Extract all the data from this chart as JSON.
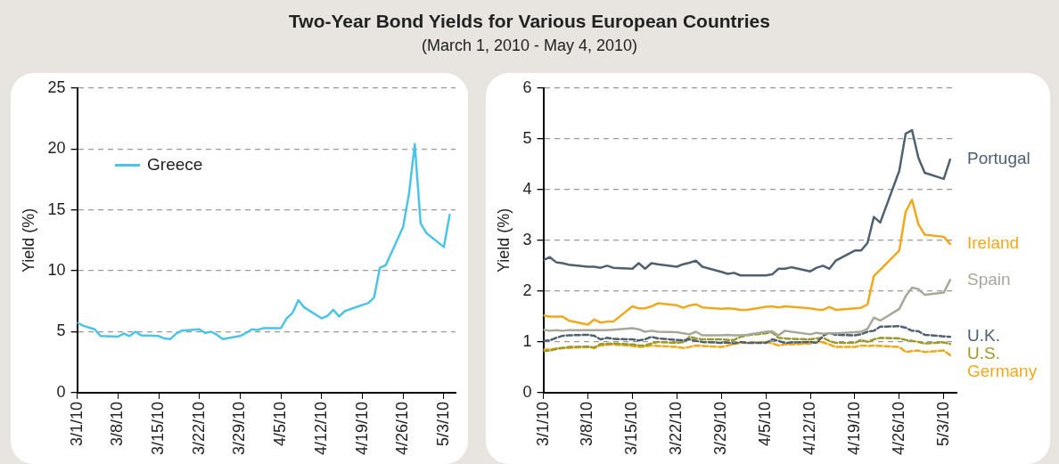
{
  "chart_data": [
    {
      "type": "line",
      "title": "Two-Year Bond Yields for Various European Countries",
      "subtitle": "(March 1, 2010 - May 4, 2010)",
      "ylabel": "Yield (%)",
      "x": [
        "2010-03-01",
        "2010-03-02",
        "2010-03-03",
        "2010-03-04",
        "2010-03-05",
        "2010-03-08",
        "2010-03-09",
        "2010-03-10",
        "2010-03-11",
        "2010-03-12",
        "2010-03-15",
        "2010-03-16",
        "2010-03-17",
        "2010-03-18",
        "2010-03-19",
        "2010-03-22",
        "2010-03-23",
        "2010-03-24",
        "2010-03-25",
        "2010-03-26",
        "2010-03-29",
        "2010-03-30",
        "2010-03-31",
        "2010-04-01",
        "2010-04-02",
        "2010-04-05",
        "2010-04-06",
        "2010-04-07",
        "2010-04-08",
        "2010-04-09",
        "2010-04-12",
        "2010-04-13",
        "2010-04-14",
        "2010-04-15",
        "2010-04-16",
        "2010-04-19",
        "2010-04-20",
        "2010-04-21",
        "2010-04-22",
        "2010-04-23",
        "2010-04-26",
        "2010-04-27",
        "2010-04-28",
        "2010-04-29",
        "2010-04-30",
        "2010-05-03",
        "2010-05-04"
      ],
      "xlim": [
        "2010-03-01",
        "2010-05-05"
      ],
      "xticks": [
        {
          "value": "2010-03-01",
          "label": "3/1/10"
        },
        {
          "value": "2010-03-08",
          "label": "3/8/10"
        },
        {
          "value": "2010-03-15",
          "label": "3/15/10"
        },
        {
          "value": "2010-03-22",
          "label": "3/22/10"
        },
        {
          "value": "2010-03-29",
          "label": "3/29/10"
        },
        {
          "value": "2010-04-05",
          "label": "4/5/10"
        },
        {
          "value": "2010-04-12",
          "label": "4/12/10"
        },
        {
          "value": "2010-04-19",
          "label": "4/19/10"
        },
        {
          "value": "2010-04-26",
          "label": "4/26/10"
        },
        {
          "value": "2010-05-03",
          "label": "5/3/10"
        }
      ],
      "ylim": [
        0,
        25
      ],
      "yticks": [
        0,
        5,
        10,
        15,
        20,
        25
      ],
      "grid": "y",
      "legend": "top left",
      "marker": "none",
      "series": [
        {
          "name": "Greece",
          "color": "#4cc4e8",
          "line_style": "solid",
          "values": [
            5.74,
            5.5,
            5.35,
            5.2,
            4.65,
            4.6,
            4.85,
            4.65,
            5.0,
            4.7,
            4.65,
            4.45,
            4.4,
            4.85,
            5.1,
            5.2,
            4.9,
            5.0,
            4.75,
            4.4,
            4.65,
            4.9,
            5.2,
            5.15,
            5.3,
            5.3,
            6.1,
            6.55,
            7.6,
            7.0,
            6.1,
            6.3,
            6.8,
            6.25,
            6.7,
            7.2,
            7.35,
            7.8,
            10.25,
            10.45,
            13.6,
            16.3,
            20.4,
            13.9,
            13.1,
            11.95,
            14.6
          ]
        }
      ]
    },
    {
      "type": "line",
      "ylabel": "Yield (%)",
      "x": [
        "2010-03-01",
        "2010-03-02",
        "2010-03-03",
        "2010-03-04",
        "2010-03-05",
        "2010-03-08",
        "2010-03-09",
        "2010-03-10",
        "2010-03-11",
        "2010-03-12",
        "2010-03-15",
        "2010-03-16",
        "2010-03-17",
        "2010-03-18",
        "2010-03-19",
        "2010-03-22",
        "2010-03-23",
        "2010-03-24",
        "2010-03-25",
        "2010-03-26",
        "2010-03-29",
        "2010-03-30",
        "2010-03-31",
        "2010-04-01",
        "2010-04-02",
        "2010-04-05",
        "2010-04-06",
        "2010-04-07",
        "2010-04-08",
        "2010-04-09",
        "2010-04-12",
        "2010-04-13",
        "2010-04-14",
        "2010-04-15",
        "2010-04-16",
        "2010-04-19",
        "2010-04-20",
        "2010-04-21",
        "2010-04-22",
        "2010-04-23",
        "2010-04-26",
        "2010-04-27",
        "2010-04-28",
        "2010-04-29",
        "2010-04-30",
        "2010-05-03",
        "2010-05-04"
      ],
      "xlim": [
        "2010-03-01",
        "2010-05-05"
      ],
      "xticks": [
        {
          "value": "2010-03-01",
          "label": "3/1/10"
        },
        {
          "value": "2010-03-08",
          "label": "3/8/10"
        },
        {
          "value": "2010-03-15",
          "label": "3/15/10"
        },
        {
          "value": "2010-03-22",
          "label": "3/22/10"
        },
        {
          "value": "2010-03-29",
          "label": "3/29/10"
        },
        {
          "value": "2010-04-05",
          "label": "4/5/10"
        },
        {
          "value": "2010-04-12",
          "label": "4/12/10"
        },
        {
          "value": "2010-04-19",
          "label": "4/19/10"
        },
        {
          "value": "2010-04-26",
          "label": "4/26/10"
        },
        {
          "value": "2010-05-03",
          "label": "5/3/10"
        }
      ],
      "ylim": [
        0,
        6
      ],
      "yticks": [
        0,
        1,
        2,
        3,
        4,
        5,
        6
      ],
      "grid": "y",
      "marker": "none",
      "series": [
        {
          "name": "Portugal",
          "color": "#4f6170",
          "line_style": "solid",
          "values": [
            2.61,
            2.67,
            2.57,
            2.55,
            2.52,
            2.48,
            2.48,
            2.46,
            2.5,
            2.46,
            2.44,
            2.55,
            2.44,
            2.55,
            2.53,
            2.48,
            2.53,
            2.56,
            2.6,
            2.48,
            2.38,
            2.34,
            2.36,
            2.31,
            2.31,
            2.31,
            2.33,
            2.44,
            2.44,
            2.47,
            2.39,
            2.46,
            2.5,
            2.44,
            2.6,
            2.8,
            2.8,
            2.95,
            3.46,
            3.35,
            4.37,
            5.1,
            5.17,
            4.63,
            4.33,
            4.21,
            4.59
          ]
        },
        {
          "name": "Ireland",
          "color": "#f0a81c",
          "line_style": "solid",
          "values": [
            1.52,
            1.5,
            1.5,
            1.5,
            1.42,
            1.34,
            1.44,
            1.38,
            1.4,
            1.4,
            1.7,
            1.66,
            1.66,
            1.7,
            1.76,
            1.72,
            1.67,
            1.72,
            1.74,
            1.68,
            1.65,
            1.66,
            1.65,
            1.63,
            1.63,
            1.69,
            1.7,
            1.68,
            1.7,
            1.69,
            1.66,
            1.64,
            1.63,
            1.69,
            1.63,
            1.66,
            1.67,
            1.74,
            2.3,
            2.42,
            2.8,
            3.56,
            3.8,
            3.32,
            3.11,
            3.07,
            2.93
          ]
        },
        {
          "name": "Spain",
          "color": "#a8a89a",
          "line_style": "solid",
          "values": [
            1.24,
            1.22,
            1.23,
            1.22,
            1.23,
            1.23,
            1.23,
            1.23,
            1.23,
            1.24,
            1.27,
            1.25,
            1.2,
            1.22,
            1.2,
            1.19,
            1.17,
            1.15,
            1.2,
            1.13,
            1.13,
            1.14,
            1.13,
            1.13,
            1.14,
            1.2,
            1.21,
            1.13,
            1.22,
            1.2,
            1.15,
            1.18,
            1.16,
            1.17,
            1.17,
            1.19,
            1.2,
            1.26,
            1.48,
            1.42,
            1.65,
            1.9,
            2.07,
            2.04,
            1.93,
            1.97,
            2.22
          ]
        },
        {
          "name": "U.K.",
          "color": "#4f6170",
          "line_style": "dashed",
          "values": [
            1.02,
            1.03,
            1.08,
            1.12,
            1.13,
            1.14,
            1.12,
            1.05,
            1.08,
            1.06,
            1.05,
            1.03,
            1.05,
            1.1,
            1.07,
            1.04,
            1.03,
            1.05,
            1.02,
            1.0,
            0.98,
            0.99,
            0.97,
            1.0,
            0.98,
            0.98,
            1.05,
            1.02,
            0.98,
            0.99,
            1.0,
            0.98,
            1.12,
            1.18,
            1.14,
            1.13,
            1.15,
            1.2,
            1.22,
            1.3,
            1.31,
            1.28,
            1.22,
            1.21,
            1.14,
            1.11,
            1.1
          ]
        },
        {
          "name": "U.S.",
          "color": "#9a9a2a",
          "line_style": "dashed",
          "values": [
            0.82,
            0.83,
            0.86,
            0.88,
            0.9,
            0.91,
            0.89,
            0.96,
            0.96,
            0.97,
            0.95,
            0.93,
            0.93,
            0.97,
            1.0,
            0.98,
            1.0,
            1.1,
            1.07,
            1.05,
            1.05,
            1.04,
            1.04,
            1.1,
            1.13,
            1.17,
            1.19,
            1.08,
            1.07,
            1.06,
            1.05,
            1.07,
            1.08,
            1.02,
            0.98,
            0.98,
            1.04,
            1.0,
            1.05,
            1.08,
            1.07,
            1.04,
            1.02,
            1.0,
            0.97,
            0.99,
            0.96
          ]
        },
        {
          "name": "Germany",
          "color": "#f0a81c",
          "line_style": "dashed",
          "values": [
            0.85,
            0.85,
            0.87,
            0.88,
            0.88,
            0.9,
            0.88,
            0.93,
            0.94,
            0.95,
            0.92,
            0.9,
            0.91,
            0.93,
            0.92,
            0.9,
            0.88,
            0.9,
            0.93,
            0.92,
            0.9,
            0.93,
            0.96,
            0.98,
            0.98,
            1.0,
            0.97,
            0.93,
            0.95,
            0.95,
            0.97,
            1.0,
            0.99,
            0.95,
            0.9,
            0.9,
            0.93,
            0.92,
            0.93,
            0.92,
            0.9,
            0.8,
            0.82,
            0.83,
            0.8,
            0.83,
            0.74
          ]
        }
      ]
    }
  ]
}
